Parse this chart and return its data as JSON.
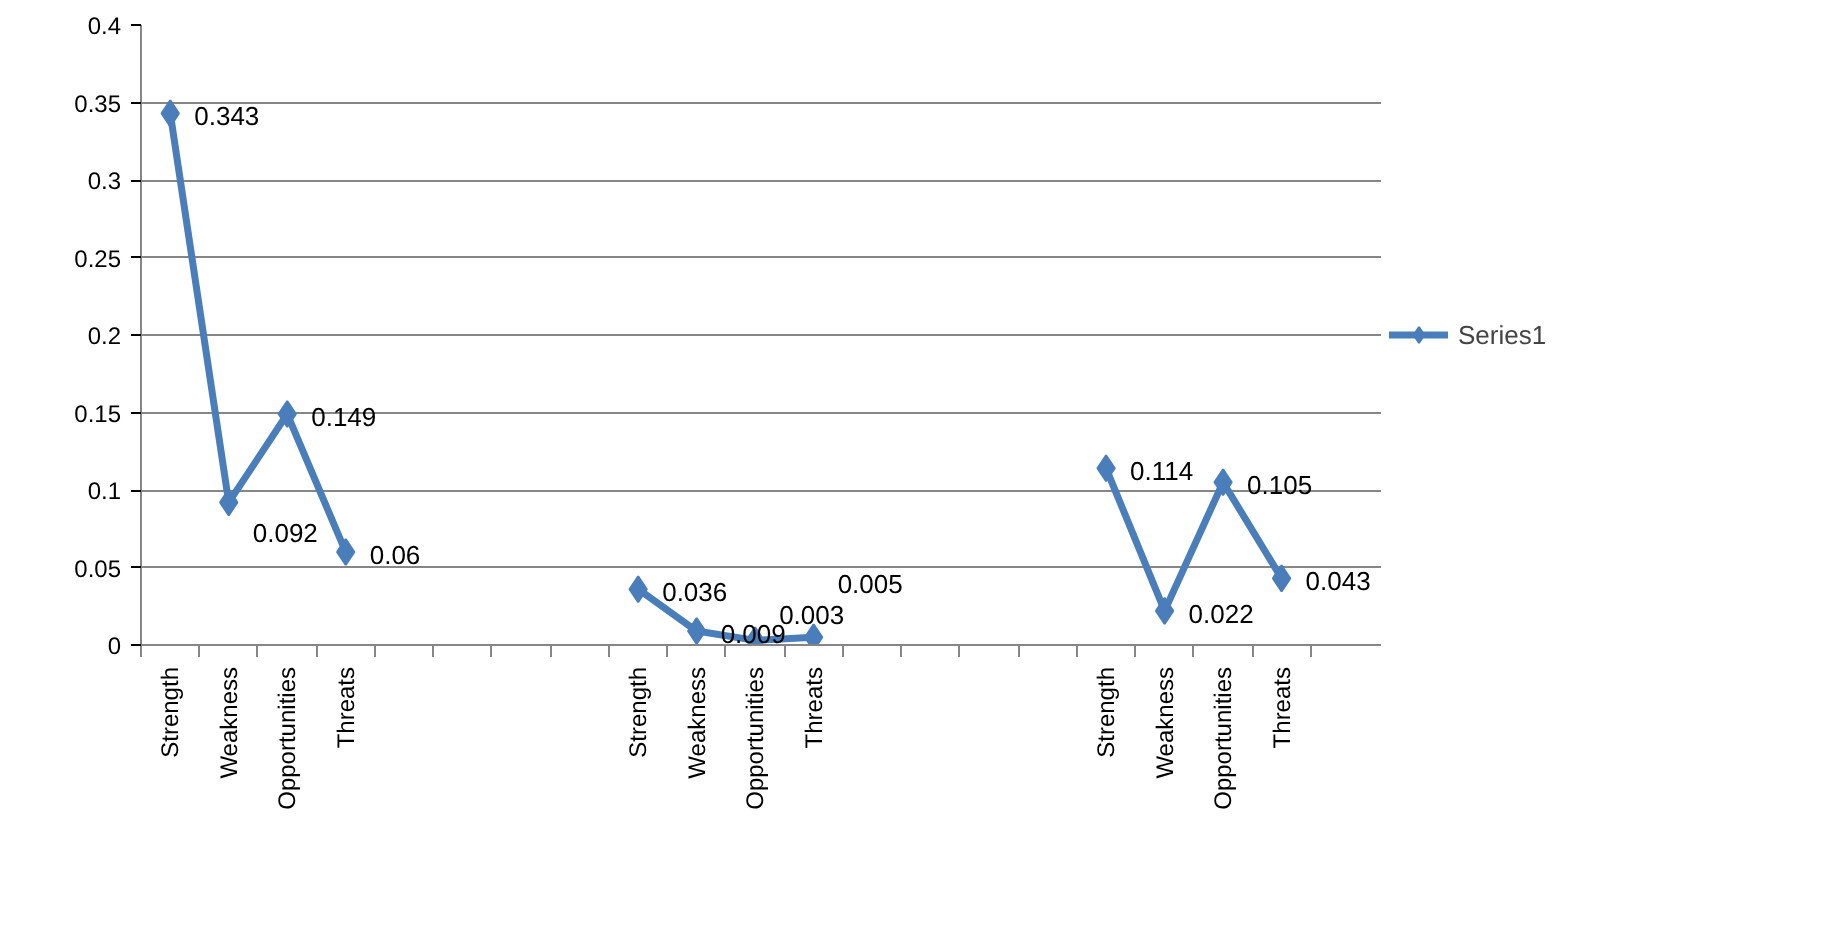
{
  "chart_data": {
    "type": "line",
    "categories": [
      "Strength",
      "Weakness",
      "Opportunities",
      "Threats",
      null,
      null,
      null,
      null,
      "Strength",
      "Weakness",
      "Opportunities",
      "Threats",
      null,
      null,
      null,
      null,
      "Strength",
      "Weakness",
      "Opportunities",
      "Threats"
    ],
    "series": [
      {
        "name": "Series1",
        "color": "#4a7ebb",
        "values": [
          0.343,
          0.092,
          0.149,
          0.06,
          null,
          null,
          null,
          null,
          0.036,
          0.009,
          0.003,
          0.005,
          null,
          null,
          null,
          null,
          0.114,
          0.022,
          0.105,
          0.043
        ]
      }
    ],
    "ylim": [
      0,
      0.4
    ],
    "yticks": [
      0,
      0.05,
      0.1,
      0.15,
      0.2,
      0.25,
      0.3,
      0.35,
      0.4
    ],
    "grid": "y",
    "legend": "right",
    "marker": "diamond",
    "line_style": "solid",
    "data_labels": true
  }
}
